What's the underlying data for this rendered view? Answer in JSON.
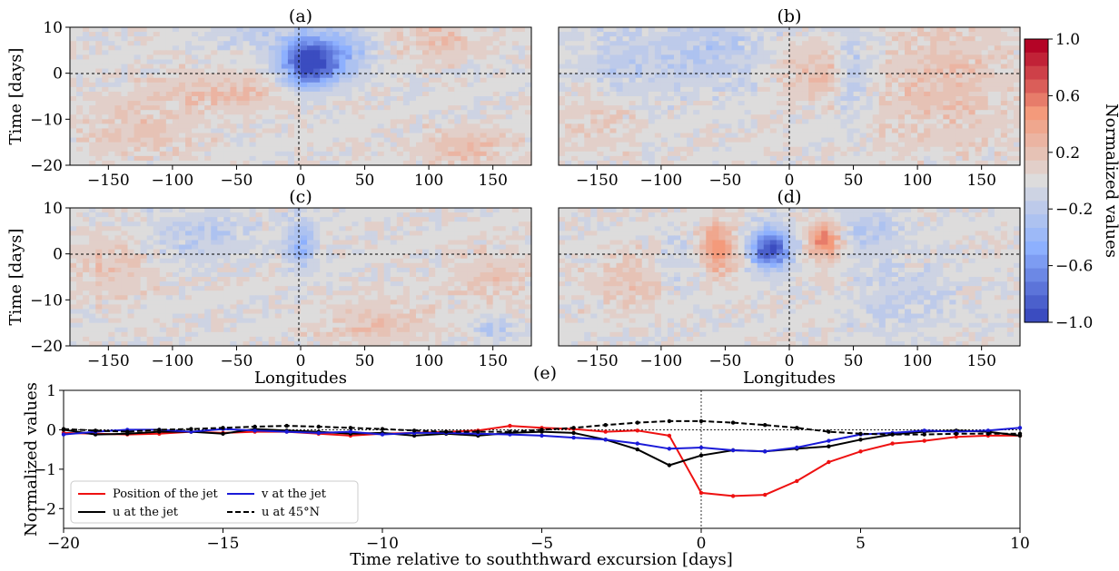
{
  "colors": {
    "cmap_low": "#3b4cc0",
    "cmap_mid": "#dddcdc",
    "cmap_high": "#b40426",
    "position_jet": "#ee1111",
    "u_jet": "#000000",
    "v_jet": "#1a1ad8",
    "u_45N": "#000000"
  },
  "colorbar": {
    "label": "Normalized values",
    "ticks": [
      "1.0",
      "0.6",
      "0.2",
      "−0.2",
      "−0.6",
      "−1.0"
    ],
    "tick_values": [
      1.0,
      0.6,
      0.2,
      -0.2,
      -0.6,
      -1.0
    ],
    "range": [
      -1,
      1
    ],
    "levels": 21
  },
  "panels": [
    {
      "id": "a",
      "title": "(a)",
      "ylabel": "Time [days]",
      "xlabel": "",
      "xticks": [
        "−150",
        "−100",
        "−50",
        "0",
        "50",
        "100",
        "150"
      ],
      "yticks": [
        "10",
        "0",
        "−10",
        "−20"
      ],
      "xlim": [
        -180,
        180
      ],
      "ylim": [
        -20,
        10
      ],
      "features": [
        {
          "lon": 5,
          "t": 2,
          "amp": -1.0,
          "sx": 14,
          "st": 3.5
        },
        {
          "lon": 28,
          "t": 4,
          "amp": -0.45,
          "sx": 18,
          "st": 4
        },
        {
          "lon": -60,
          "t": -4,
          "amp": 0.22,
          "sx": 40,
          "st": 3
        },
        {
          "lon": -130,
          "t": -12,
          "amp": 0.2,
          "sx": 30,
          "st": 4
        },
        {
          "lon": 130,
          "t": -16,
          "amp": 0.22,
          "sx": 30,
          "st": 3
        },
        {
          "lon": 110,
          "t": 8,
          "amp": 0.2,
          "sx": 25,
          "st": 4
        },
        {
          "lon": -30,
          "t": 8,
          "amp": -0.15,
          "sx": 30,
          "st": 3
        }
      ]
    },
    {
      "id": "b",
      "title": "(b)",
      "ylabel": "",
      "xlabel": "",
      "xticks": [
        "−150",
        "−100",
        "−50",
        "0",
        "50",
        "100",
        "150"
      ],
      "yticks": [],
      "xlim": [
        -180,
        180
      ],
      "ylim": [
        -20,
        10
      ],
      "features": [
        {
          "lon": -60,
          "t": 5,
          "amp": -0.22,
          "sx": 30,
          "st": 6
        },
        {
          "lon": -130,
          "t": 2,
          "amp": -0.18,
          "sx": 30,
          "st": 6
        },
        {
          "lon": 25,
          "t": 0,
          "amp": 0.3,
          "sx": 10,
          "st": 4
        },
        {
          "lon": 0,
          "t": 0,
          "amp": 0.15,
          "sx": 8,
          "st": 4
        },
        {
          "lon": 120,
          "t": -3,
          "amp": 0.2,
          "sx": 40,
          "st": 10
        },
        {
          "lon": 50,
          "t": 0,
          "amp": -0.22,
          "sx": 10,
          "st": 8
        },
        {
          "lon": -150,
          "t": -10,
          "amp": 0.15,
          "sx": 25,
          "st": 5
        }
      ]
    },
    {
      "id": "c",
      "title": "(c)",
      "ylabel": "Time [days]",
      "xlabel": "Longitudes",
      "xticks": [
        "−150",
        "−100",
        "−50",
        "0",
        "50",
        "100",
        "150"
      ],
      "yticks": [
        "10",
        "0",
        "−10",
        "−20"
      ],
      "xlim": [
        -180,
        180
      ],
      "ylim": [
        -20,
        10
      ],
      "features": [
        {
          "lon": 0,
          "t": 2,
          "amp": -0.4,
          "sx": 8,
          "st": 4
        },
        {
          "lon": -80,
          "t": 4,
          "amp": -0.2,
          "sx": 30,
          "st": 4
        },
        {
          "lon": -150,
          "t": -3,
          "amp": 0.18,
          "sx": 25,
          "st": 5
        },
        {
          "lon": 60,
          "t": -15,
          "amp": 0.18,
          "sx": 30,
          "st": 4
        },
        {
          "lon": 150,
          "t": -16,
          "amp": -0.25,
          "sx": 10,
          "st": 2
        },
        {
          "lon": 150,
          "t": -5,
          "amp": 0.15,
          "sx": 25,
          "st": 5
        }
      ]
    },
    {
      "id": "d",
      "title": "(d)",
      "ylabel": "",
      "xlabel": "Longitudes",
      "xticks": [
        "−150",
        "−100",
        "−50",
        "0",
        "50",
        "100",
        "150"
      ],
      "yticks": [],
      "xlim": [
        -180,
        180
      ],
      "ylim": [
        -20,
        10
      ],
      "features": [
        {
          "lon": -15,
          "t": 1,
          "amp": -1.0,
          "sx": 11,
          "st": 3
        },
        {
          "lon": -55,
          "t": 1,
          "amp": 0.5,
          "sx": 10,
          "st": 4
        },
        {
          "lon": 28,
          "t": 3,
          "amp": 0.6,
          "sx": 9,
          "st": 3
        },
        {
          "lon": 60,
          "t": 5,
          "amp": -0.2,
          "sx": 20,
          "st": 4
        },
        {
          "lon": -120,
          "t": -6,
          "amp": 0.2,
          "sx": 25,
          "st": 5
        },
        {
          "lon": -90,
          "t": -3,
          "amp": -0.18,
          "sx": 15,
          "st": 5
        },
        {
          "lon": 90,
          "t": -10,
          "amp": -0.15,
          "sx": 30,
          "st": 5
        }
      ]
    }
  ],
  "chart_data": {
    "type": "line",
    "title": "(e)",
    "xlabel": "Time relative to souththward excursion [days]",
    "ylabel": "Normalized values",
    "xlim": [
      -20,
      10
    ],
    "ylim": [
      -2.5,
      1
    ],
    "xticks": [
      "−20",
      "−15",
      "−10",
      "−5",
      "0",
      "5",
      "10"
    ],
    "yticks": [
      "1",
      "0",
      "−1",
      "−2"
    ],
    "x": [
      -20,
      -19,
      -18,
      -17,
      -16,
      -15,
      -14,
      -13,
      -12,
      -11,
      -10,
      -9,
      -8,
      -7,
      -6,
      -5,
      -4,
      -3,
      -2,
      -1,
      0,
      1,
      2,
      3,
      4,
      5,
      6,
      7,
      8,
      9,
      10
    ],
    "series": [
      {
        "name": "Position of the jet",
        "style": "solid",
        "values": [
          -0.08,
          -0.1,
          -0.12,
          -0.1,
          -0.05,
          -0.08,
          -0.05,
          -0.05,
          -0.1,
          -0.15,
          -0.1,
          -0.08,
          -0.05,
          -0.02,
          0.1,
          0.05,
          0.02,
          -0.05,
          -0.02,
          -0.15,
          -1.6,
          -1.68,
          -1.65,
          -1.3,
          -0.82,
          -0.55,
          -0.35,
          -0.28,
          -0.18,
          -0.15,
          -0.15
        ]
      },
      {
        "name": "u at the jet",
        "style": "solid",
        "values": [
          0.0,
          -0.12,
          -0.1,
          -0.05,
          -0.05,
          -0.1,
          0.02,
          -0.02,
          -0.05,
          -0.1,
          -0.08,
          -0.15,
          -0.1,
          -0.15,
          -0.08,
          -0.05,
          -0.08,
          -0.25,
          -0.5,
          -0.9,
          -0.65,
          -0.52,
          -0.55,
          -0.48,
          -0.42,
          -0.25,
          -0.12,
          -0.05,
          -0.02,
          -0.05,
          -0.15
        ]
      },
      {
        "name": "v at the jet",
        "style": "solid",
        "values": [
          -0.12,
          -0.05,
          0.0,
          0.0,
          -0.05,
          0.02,
          -0.02,
          -0.05,
          -0.08,
          -0.05,
          -0.12,
          -0.08,
          -0.08,
          -0.1,
          -0.12,
          -0.15,
          -0.2,
          -0.25,
          -0.35,
          -0.48,
          -0.45,
          -0.52,
          -0.55,
          -0.45,
          -0.28,
          -0.12,
          -0.08,
          -0.02,
          -0.05,
          -0.02,
          0.05
        ]
      },
      {
        "name": "u at 45°N",
        "style": "dashed",
        "values": [
          0.02,
          -0.02,
          -0.05,
          0.0,
          0.02,
          0.05,
          0.08,
          0.1,
          0.08,
          0.05,
          0.02,
          -0.02,
          -0.05,
          -0.05,
          -0.05,
          0.0,
          0.05,
          0.12,
          0.18,
          0.22,
          0.22,
          0.18,
          0.12,
          0.05,
          -0.05,
          -0.1,
          -0.12,
          -0.12,
          -0.1,
          -0.1,
          -0.1
        ]
      }
    ],
    "legend_position": "lower-left"
  }
}
